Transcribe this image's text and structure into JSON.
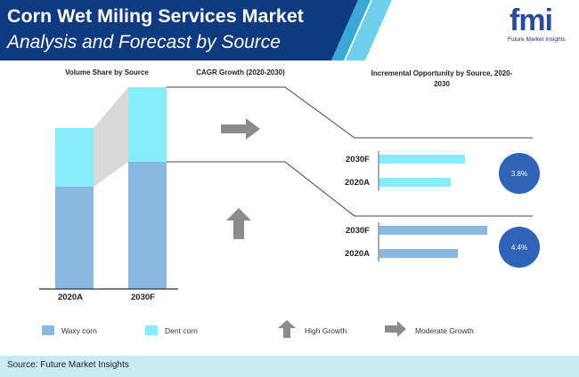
{
  "header": {
    "title": "Corn Wet Miling Services Market",
    "subtitle": "Analysis and Forecast by Source",
    "logo_text": "fmi",
    "logo_subtext": "Future Market Insights"
  },
  "sections": {
    "volume_share": "Volume Share by Source",
    "cagr": "CAGR Growth (2020-2030)",
    "incremental": "Incremental Opportunity by Source, 2020-2030"
  },
  "legend": {
    "waxy": "Waxy corn",
    "dent": "Dent corn",
    "high_growth": "High Growth",
    "moderate_growth": "Moderate Growth"
  },
  "footer": {
    "source": "Source: Future Market Insights"
  },
  "colors": {
    "waxy": "#8ab8e0",
    "dent": "#87ecf9",
    "header_bg": "#0f3a80",
    "accent": "#2e63b7",
    "arrow": "#8c8c8c",
    "footer_bg": "#c9ebf4"
  },
  "icons": {
    "high_growth": "arrow-up-icon",
    "moderate_growth": "arrow-right-icon"
  },
  "chart_data": [
    {
      "type": "bar",
      "stacked": true,
      "title": "Volume Share by Source",
      "categories": [
        "2020A",
        "2030F"
      ],
      "series": [
        {
          "name": "Waxy corn",
          "values": [
            0.9,
            1.15
          ]
        },
        {
          "name": "Dent corn",
          "values": [
            0.5,
            0.65
          ]
        }
      ]
    },
    {
      "type": "bar",
      "orientation": "horizontal",
      "title": "Incremental Opportunity by Source, 2020-2030",
      "groups": [
        {
          "series": "Dent corn",
          "cagr": "3.8%",
          "categories": [
            "2030F",
            "2020A"
          ],
          "values": [
            0.95,
            0.72
          ]
        },
        {
          "series": "Waxy corn",
          "cagr": "4.4%",
          "categories": [
            "2030F",
            "2020A"
          ],
          "values": [
            1.05,
            0.77
          ]
        }
      ]
    }
  ]
}
